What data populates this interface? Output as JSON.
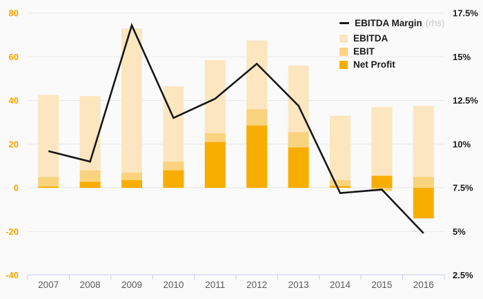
{
  "chart_data": {
    "type": "bar",
    "subtype": "overlaid-bars-with-line",
    "title": "",
    "x": [
      "2007",
      "2008",
      "2009",
      "2010",
      "2011",
      "2012",
      "2013",
      "2014",
      "2015",
      "2016"
    ],
    "bar_series": [
      {
        "name": "EBITDA",
        "color": "#FBE6C0",
        "values": [
          42.5,
          42,
          73,
          46.5,
          58.5,
          67.5,
          56,
          33,
          37,
          37.5
        ]
      },
      {
        "name": "EBIT",
        "color": "#FAD37E",
        "values": [
          5,
          8,
          7,
          12,
          25,
          36,
          25.5,
          3.5,
          -1.5,
          5
        ]
      },
      {
        "name": "Net Profit",
        "color": "#F8AE00",
        "values": [
          0.6,
          2.7,
          3.5,
          8,
          21,
          28.5,
          18.5,
          0.8,
          5.5,
          -14
        ]
      }
    ],
    "line_series": {
      "name": "EBITDA Margin",
      "axis": "rhs",
      "color": "#161616",
      "values_pct": [
        9.6,
        9.0,
        16.8,
        11.5,
        12.6,
        14.6,
        12.2,
        7.2,
        7.4,
        4.9
      ]
    },
    "left_axis": {
      "range": [
        -40,
        80
      ],
      "tick_values": [
        80,
        60,
        40,
        20,
        0,
        -20,
        -40
      ],
      "tick_labels": [
        "80",
        "60",
        "40",
        "20",
        "0",
        "-20",
        "-40"
      ],
      "label_color": "#F1A501"
    },
    "right_axis": {
      "range_pct": [
        2.5,
        17.5
      ],
      "tick_values": [
        17.5,
        15,
        12.5,
        10,
        7.5,
        5,
        2.5
      ],
      "tick_labels": [
        "17.5%",
        "15%",
        "12.5%",
        "10%",
        "7.5%",
        "5%",
        "2.5%"
      ],
      "label_color": "#1A1A1A"
    },
    "grid": true,
    "legend": {
      "position": "top-right",
      "items": [
        {
          "label": "EBITDA Margin",
          "suffix": "(rhs)",
          "swatch": "line",
          "color": "#161616"
        },
        {
          "label": "EBITDA",
          "suffix": "",
          "swatch": "square",
          "color": "#FBE6C0"
        },
        {
          "label": "EBIT",
          "suffix": "",
          "swatch": "square",
          "color": "#FAD37E"
        },
        {
          "label": "Net Profit",
          "suffix": "",
          "swatch": "square",
          "color": "#F8AE00"
        }
      ]
    }
  },
  "styles": {
    "background": "#FAFAFA",
    "gridline_color": "#E8E8E8",
    "zero_line_color": "#E3E3E3",
    "axis_line_color": "#C5CFE4",
    "x_label_color": "#595959",
    "rhs_note_color": "#C9C9C9"
  }
}
